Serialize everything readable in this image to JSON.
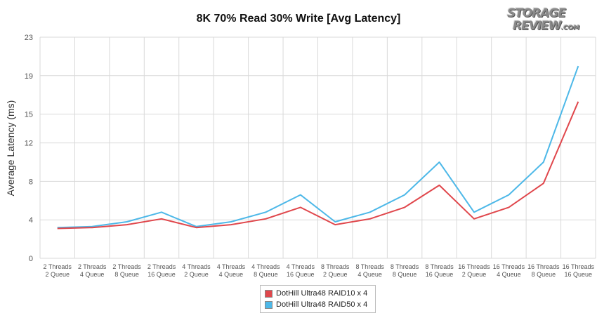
{
  "chart_data": {
    "type": "line",
    "title": "8K 70% Read 30% Write [Avg Latency]",
    "ylabel": "Average Latency (ms)",
    "xlabel": "",
    "ylim": [
      0,
      23
    ],
    "yticks": [
      "0",
      "4",
      "8",
      "12",
      "15",
      "19",
      "23"
    ],
    "grid": true,
    "legend_position": "bottom-center",
    "categories": [
      [
        "2 Threads",
        "2 Queue"
      ],
      [
        "2 Threads",
        "4 Queue"
      ],
      [
        "2 Threads",
        "8 Queue"
      ],
      [
        "2 Threads",
        "16 Queue"
      ],
      [
        "4 Threads",
        "2 Queue"
      ],
      [
        "4 Threads",
        "4 Queue"
      ],
      [
        "4 Threads",
        "8 Queue"
      ],
      [
        "4 Threads",
        "16 Queue"
      ],
      [
        "8 Threads",
        "2 Queue"
      ],
      [
        "8 Threads",
        "4 Queue"
      ],
      [
        "8 Threads",
        "8 Queue"
      ],
      [
        "8 Threads",
        "16 Queue"
      ],
      [
        "16 Threads",
        "2 Queue"
      ],
      [
        "16 Threads",
        "4 Queue"
      ],
      [
        "16 Threads",
        "8 Queue"
      ],
      [
        "16 Threads",
        "16 Queue"
      ]
    ],
    "series": [
      {
        "name": "DotHill Ultra48 RAID10 x 4",
        "color": "#e0474c",
        "values": [
          3.1,
          3.2,
          3.5,
          4.1,
          3.2,
          3.5,
          4.1,
          5.3,
          3.5,
          4.1,
          5.3,
          7.6,
          4.1,
          5.3,
          7.8,
          16.3
        ]
      },
      {
        "name": "DotHill Ultra48 RAID50 x 4",
        "color": "#4db8e8",
        "values": [
          3.2,
          3.3,
          3.8,
          4.8,
          3.3,
          3.8,
          4.8,
          6.6,
          3.8,
          4.8,
          6.6,
          10.0,
          4.8,
          6.6,
          10.0,
          20.0
        ]
      }
    ]
  },
  "logo": {
    "line1": "STORAGE",
    "line2": "REVIEW",
    "suffix": ".COM"
  }
}
